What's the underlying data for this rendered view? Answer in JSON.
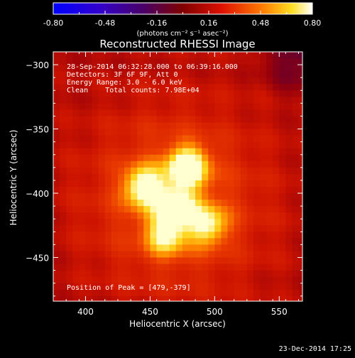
{
  "colorbar": {
    "tick_labels": [
      "-0.80",
      "-0.48",
      "-0.16",
      "0.16",
      "0.48",
      "0.80"
    ],
    "range": [
      -0.8,
      0.8
    ],
    "unit_label": "(photons cm⁻² s⁻¹ asec⁻²)"
  },
  "chart_data": {
    "type": "heatmap",
    "title": "Reconstructed RHESSI Image",
    "xlabel": "Heliocentric X (arcsec)",
    "ylabel": "Heliocentric Y (arcsec)",
    "xlim": [
      375,
      568
    ],
    "ylim": [
      -484,
      -290
    ],
    "x_ticks": [
      400,
      450,
      500,
      550
    ],
    "y_ticks": [
      -300,
      -350,
      -400,
      -450
    ],
    "sources": [
      {
        "x": 479,
        "y": -379,
        "relative_intensity": 1.0
      },
      {
        "x": 445,
        "y": -395,
        "relative_intensity": 0.85
      },
      {
        "x": 470,
        "y": -410,
        "relative_intensity": 0.75
      },
      {
        "x": 495,
        "y": -425,
        "relative_intensity": 0.7
      },
      {
        "x": 462,
        "y": -433,
        "relative_intensity": 0.7
      }
    ],
    "info_lines": [
      "28-Sep-2014 06:32:28.000 to 06:39:16.000",
      "Detectors: 3F 6F 9F, Att 0",
      "Energy Range: 3.0 - 6.0 keV",
      "Clean    Total counts: 7.98E+04"
    ],
    "peak_label": "Position of Peak = [479,-379]"
  },
  "footer": {
    "timestamp": "23-Dec-2014 17:25"
  }
}
